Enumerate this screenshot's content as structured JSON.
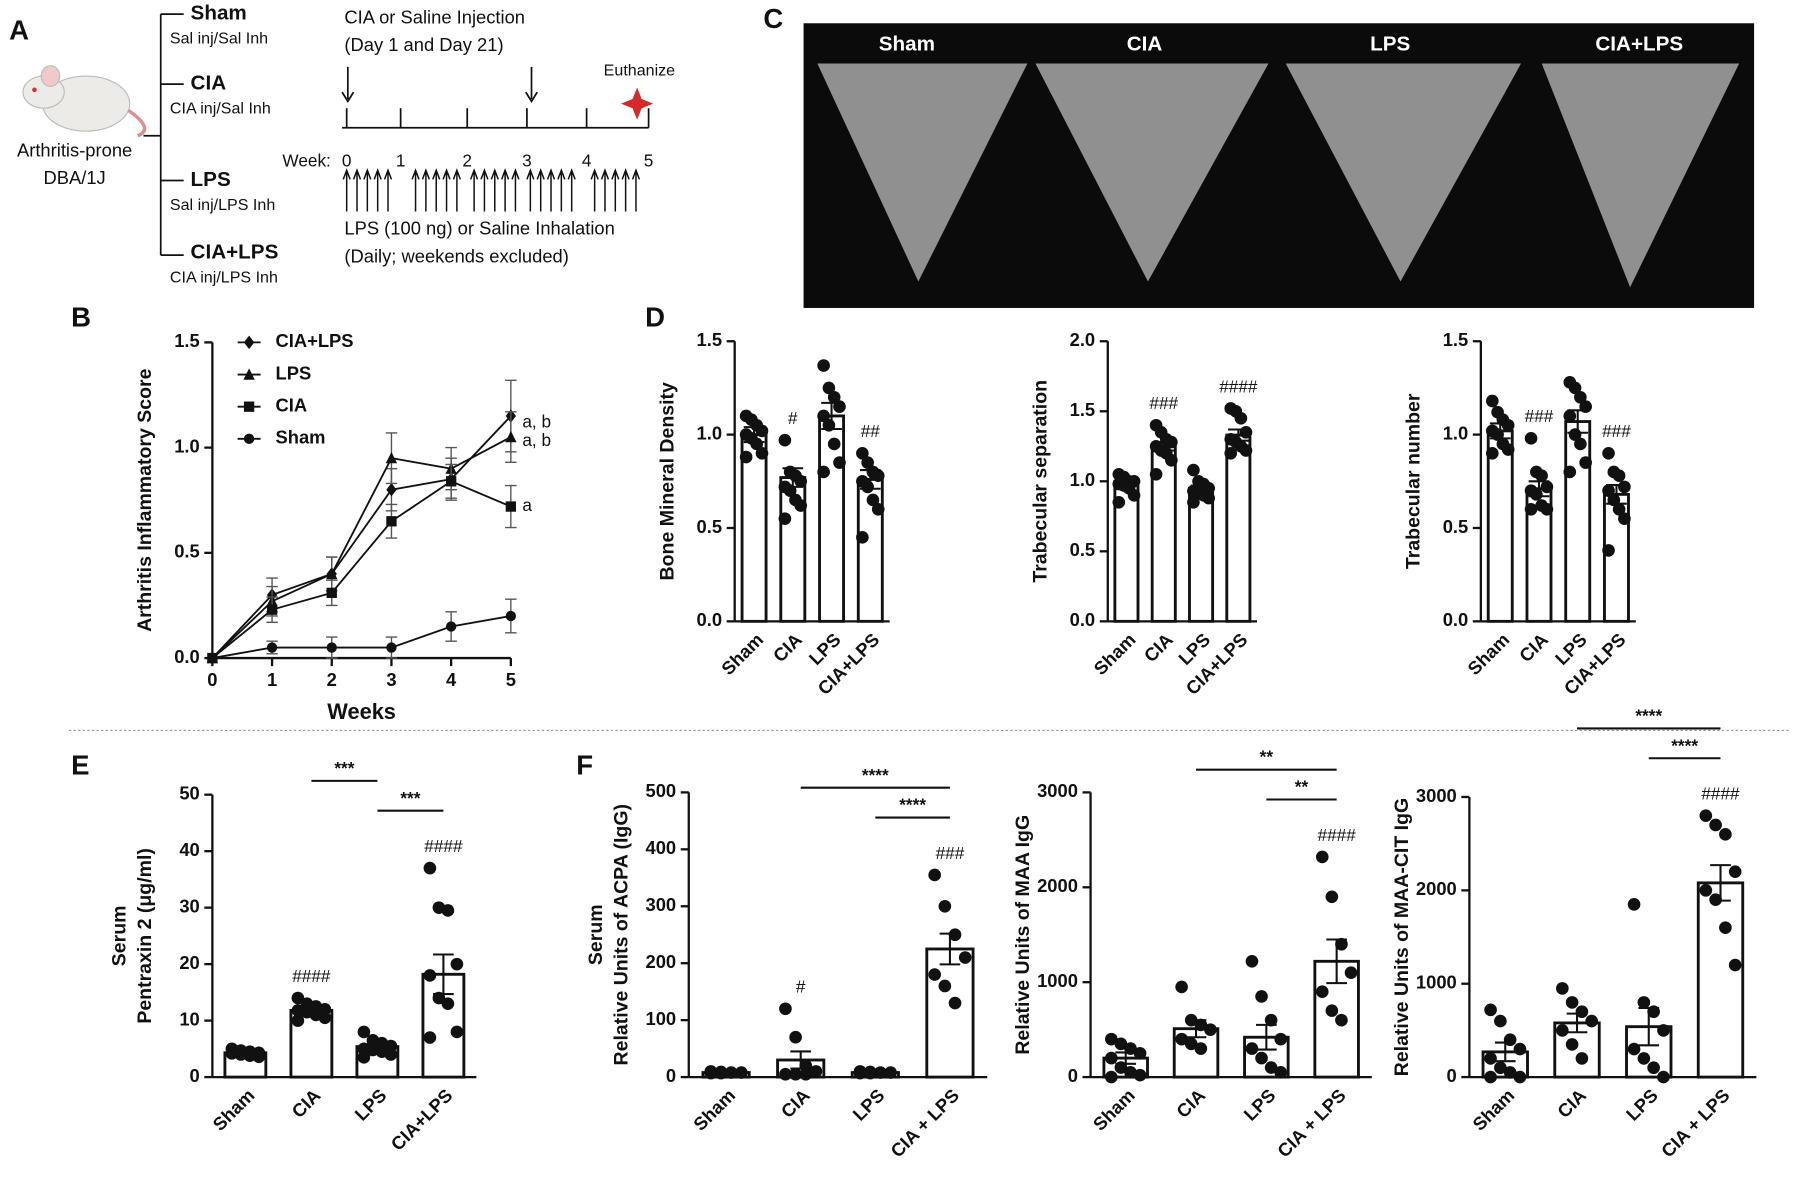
{
  "panel_labels": {
    "A": "A",
    "B": "B",
    "C": "C",
    "D": "D",
    "E": "E",
    "F": "F"
  },
  "diagram": {
    "mouse_label": [
      "Arthritis-prone",
      "DBA/1J"
    ],
    "groups": [
      {
        "name": "Sham",
        "sub": "Sal inj/Sal Inh"
      },
      {
        "name": "CIA",
        "sub": "CIA inj/Sal Inh"
      },
      {
        "name": "LPS",
        "sub": "Sal inj/LPS Inh"
      },
      {
        "name": "CIA+LPS",
        "sub": "CIA inj/LPS Inh"
      }
    ],
    "injection_label": [
      "CIA or Saline Injection",
      "(Day 1 and Day 21)"
    ],
    "euthanize": "Euthanize",
    "week_label": "Week:",
    "weeks": [
      "0",
      "1",
      "2",
      "3",
      "4",
      "5"
    ],
    "inhalation_label": [
      "LPS (100 ng) or Saline Inhalation",
      "(Daily; weekends excluded)"
    ]
  },
  "micro_ct": {
    "labels": [
      "Sham",
      "CIA",
      "LPS",
      "CIA+LPS"
    ]
  },
  "chart_data": [
    {
      "type": "line",
      "x_label": "Weeks",
      "y_label": [
        "Arthritis Inflammatory Score"
      ],
      "x": [
        0,
        1,
        2,
        3,
        4,
        5
      ],
      "xlim": [
        0,
        5
      ],
      "xticks": [
        0,
        1,
        2,
        3,
        4,
        5
      ],
      "ylim": [
        0,
        1.5
      ],
      "yticks": [
        {
          "value": 0,
          "label": "0.0"
        },
        {
          "value": 0.5,
          "label": "0.5"
        },
        {
          "value": 1,
          "label": "1.0"
        },
        {
          "value": 1.5,
          "label": "1.5"
        }
      ],
      "legend": "top-left",
      "series": [
        {
          "name": "CIA+LPS",
          "color": "#111111",
          "marker": "diamond",
          "values": [
            0,
            0.3,
            0.4,
            0.8,
            0.85,
            1.15
          ],
          "errors": [
            0,
            0.08,
            0.08,
            0.1,
            0.1,
            0.17
          ],
          "annotation": "a, b"
        },
        {
          "name": "LPS",
          "color": "#111111",
          "marker": "triangle",
          "values": [
            0,
            0.27,
            0.4,
            0.95,
            0.9,
            1.05
          ],
          "errors": [
            0,
            0.07,
            0.08,
            0.12,
            0.1,
            0.12
          ],
          "annotation": "a, b"
        },
        {
          "name": "CIA",
          "color": "#111111",
          "marker": "square",
          "values": [
            0,
            0.23,
            0.31,
            0.65,
            0.84,
            0.72
          ],
          "errors": [
            0,
            0.06,
            0.06,
            0.08,
            0.08,
            0.1
          ],
          "annotation": "a"
        },
        {
          "name": "Sham",
          "color": "#111111",
          "marker": "circle",
          "values": [
            0,
            0.05,
            0.05,
            0.05,
            0.15,
            0.2
          ],
          "errors": [
            0,
            0.03,
            0.05,
            0.05,
            0.07,
            0.08
          ],
          "annotation": null
        }
      ]
    },
    {
      "type": "bar",
      "y_label": [
        "Bone Mineral Density"
      ],
      "categories": [
        "Sham",
        "CIA",
        "LPS",
        "CIA+LPS"
      ],
      "ylim": [
        0,
        1.5
      ],
      "yticks": [
        {
          "value": 0,
          "label": "0.0"
        },
        {
          "value": 0.5,
          "label": "0.5"
        },
        {
          "value": 1,
          "label": "1.0"
        },
        {
          "value": 1.5,
          "label": "1.5"
        }
      ],
      "values": [
        1.0,
        0.77,
        1.1,
        0.76
      ],
      "errors": [
        0.04,
        0.05,
        0.07,
        0.05
      ],
      "points": [
        [
          1.1,
          1.08,
          1.05,
          1.02,
          1.0,
          0.98,
          0.95,
          0.9,
          0.88
        ],
        [
          0.97,
          0.8,
          0.78,
          0.75,
          0.72,
          0.7,
          0.65,
          0.62,
          0.55
        ],
        [
          1.37,
          1.25,
          1.2,
          1.15,
          1.1,
          1.05,
          0.95,
          0.85,
          0.8
        ],
        [
          0.9,
          0.85,
          0.8,
          0.78,
          0.75,
          0.72,
          0.65,
          0.6,
          0.45
        ]
      ],
      "annotations": [
        null,
        "#",
        null,
        "##"
      ],
      "comparisons": []
    },
    {
      "type": "bar",
      "y_label": [
        "Trabecular separation"
      ],
      "categories": [
        "Sham",
        "CIA",
        "LPS",
        "CIA+LPS"
      ],
      "ylim": [
        0,
        2
      ],
      "yticks": [
        {
          "value": 0,
          "label": "0.0"
        },
        {
          "value": 0.5,
          "label": "0.5"
        },
        {
          "value": 1,
          "label": "1.0"
        },
        {
          "value": 1.5,
          "label": "1.5"
        },
        {
          "value": 2,
          "label": "2.0"
        }
      ],
      "values": [
        1.0,
        1.25,
        0.95,
        1.33
      ],
      "errors": [
        0.02,
        0.03,
        0.02,
        0.04
      ],
      "points": [
        [
          1.05,
          1.03,
          1.0,
          1.0,
          0.98,
          0.97,
          0.95,
          0.9,
          0.85
        ],
        [
          1.4,
          1.35,
          1.3,
          1.28,
          1.25,
          1.22,
          1.2,
          1.15,
          1.05
        ],
        [
          1.08,
          1.0,
          0.98,
          0.95,
          0.93,
          0.92,
          0.9,
          0.88,
          0.85
        ],
        [
          1.52,
          1.5,
          1.45,
          1.35,
          1.3,
          1.28,
          1.25,
          1.22,
          1.2
        ]
      ],
      "annotations": [
        null,
        "###",
        null,
        "####"
      ],
      "comparisons": []
    },
    {
      "type": "bar",
      "y_label": [
        "Trabecular number"
      ],
      "categories": [
        "Sham",
        "CIA",
        "LPS",
        "CIA+LPS"
      ],
      "ylim": [
        0,
        1.5
      ],
      "yticks": [
        {
          "value": 0,
          "label": "0.0"
        },
        {
          "value": 0.5,
          "label": "0.5"
        },
        {
          "value": 1,
          "label": "1.0"
        },
        {
          "value": 1.5,
          "label": "1.5"
        }
      ],
      "values": [
        1.02,
        0.71,
        1.07,
        0.68
      ],
      "errors": [
        0.04,
        0.04,
        0.06,
        0.05
      ],
      "points": [
        [
          1.18,
          1.12,
          1.08,
          1.05,
          1.02,
          1.0,
          0.95,
          0.92,
          0.9
        ],
        [
          0.98,
          0.8,
          0.78,
          0.72,
          0.7,
          0.68,
          0.62,
          0.6,
          0.6
        ],
        [
          1.28,
          1.25,
          1.2,
          1.15,
          1.1,
          1.0,
          0.95,
          0.85,
          0.8
        ],
        [
          0.9,
          0.8,
          0.78,
          0.72,
          0.7,
          0.65,
          0.6,
          0.55,
          0.38
        ]
      ],
      "annotations": [
        null,
        "###",
        null,
        "###"
      ],
      "comparisons": []
    },
    {
      "type": "bar",
      "y_label": [
        "Serum",
        "Pentraxin 2 (μg/ml)"
      ],
      "categories": [
        "Sham",
        "CIA",
        "LPS",
        "CIA+LPS"
      ],
      "ylim": [
        0,
        50
      ],
      "yticks": [
        0,
        10,
        20,
        30,
        40,
        50
      ],
      "values": [
        4.3,
        11.8,
        5.4,
        18.2
      ],
      "errors": [
        0.3,
        0.5,
        0.5,
        3.5
      ],
      "points": [
        [
          5,
          4.7,
          4.5,
          4.3,
          4.2,
          4,
          3.8,
          3.6
        ],
        [
          14,
          13,
          12.5,
          12,
          11.8,
          11.5,
          11,
          10.5,
          10
        ],
        [
          8,
          6.5,
          6,
          5.5,
          5,
          4.8,
          4.5,
          4,
          3.5
        ],
        [
          37,
          30,
          29.5,
          20,
          18,
          14,
          13,
          8,
          7
        ]
      ],
      "annotations": [
        null,
        "####",
        null,
        "####"
      ],
      "comparisons": [
        {
          "between": [
            "CIA",
            "LPS"
          ],
          "label": "***"
        },
        {
          "between": [
            "LPS",
            "CIA+LPS"
          ],
          "label": "***"
        }
      ]
    },
    {
      "type": "bar",
      "y_label": [
        "Serum",
        "Relative Units of ACPA (IgG)"
      ],
      "categories": [
        "Sham",
        "CIA",
        "LPS",
        "CIA + LPS"
      ],
      "ylim": [
        0,
        500
      ],
      "yticks": [
        0,
        100,
        200,
        300,
        400,
        500
      ],
      "values": [
        8,
        30,
        8,
        225
      ],
      "errors": [
        1,
        15,
        1,
        27
      ],
      "points": [
        [
          10,
          9,
          8,
          8,
          7,
          7
        ],
        [
          120,
          70,
          20,
          10,
          5,
          5,
          5
        ],
        [
          10,
          9,
          8,
          8,
          7,
          7
        ],
        [
          355,
          300,
          250,
          210,
          180,
          160,
          130
        ]
      ],
      "annotations": [
        null,
        "#",
        null,
        "###"
      ],
      "comparisons": [
        {
          "between": [
            "CIA",
            "CIA + LPS"
          ],
          "label": "****"
        },
        {
          "between": [
            "LPS",
            "CIA + LPS"
          ],
          "label": "****"
        }
      ]
    },
    {
      "type": "bar",
      "y_label": [
        "Relative Units of MAA IgG"
      ],
      "categories": [
        "Sham",
        "CIA",
        "LPS",
        "CIA + LPS"
      ],
      "ylim": [
        0,
        3000
      ],
      "yticks": [
        0,
        1000,
        2000,
        3000
      ],
      "values": [
        200,
        510,
        420,
        1220
      ],
      "errors": [
        60,
        90,
        130,
        230
      ],
      "points": [
        [
          400,
          350,
          300,
          250,
          200,
          100,
          50,
          20,
          0
        ],
        [
          950,
          600,
          550,
          500,
          400,
          350,
          300
        ],
        [
          1220,
          850,
          600,
          400,
          300,
          200,
          100,
          50
        ],
        [
          2320,
          1900,
          1400,
          1100,
          900,
          700,
          600
        ]
      ],
      "annotations": [
        null,
        null,
        null,
        "####"
      ],
      "comparisons": [
        {
          "between": [
            "CIA",
            "CIA + LPS"
          ],
          "label": "**"
        },
        {
          "between": [
            "LPS",
            "CIA + LPS"
          ],
          "label": "**"
        }
      ]
    },
    {
      "type": "bar",
      "y_label": [
        "Relative Units of MAA-CIT IgG"
      ],
      "categories": [
        "Sham",
        "CIA",
        "LPS",
        "CIA + LPS"
      ],
      "ylim": [
        0,
        3000
      ],
      "yticks": [
        0,
        1000,
        2000,
        3000
      ],
      "values": [
        270,
        580,
        540,
        2080
      ],
      "errors": [
        100,
        100,
        200,
        190
      ],
      "points": [
        [
          720,
          600,
          400,
          300,
          200,
          100,
          50,
          0,
          0
        ],
        [
          950,
          800,
          700,
          600,
          500,
          350,
          200
        ],
        [
          1850,
          800,
          700,
          500,
          300,
          200,
          100,
          0
        ],
        [
          2800,
          2700,
          2600,
          2200,
          2000,
          1900,
          1600,
          1200
        ]
      ],
      "annotations": [
        null,
        null,
        null,
        "####"
      ],
      "comparisons": [
        {
          "between": [
            "CIA",
            "CIA + LPS"
          ],
          "label": "****"
        },
        {
          "between": [
            "LPS",
            "CIA + LPS"
          ],
          "label": "****"
        }
      ]
    }
  ]
}
